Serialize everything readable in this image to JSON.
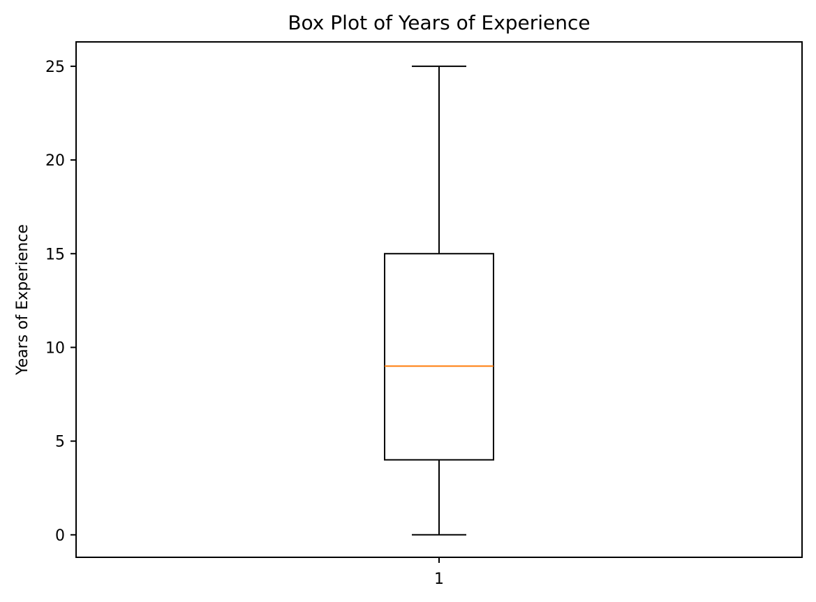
{
  "chart_data": {
    "type": "box",
    "title": "Box Plot of Years of Experience",
    "xlabel": "",
    "ylabel": "Years of Experience",
    "categories": [
      "1"
    ],
    "ylim": [
      -1.2,
      26.3
    ],
    "yticks": [
      0,
      5,
      10,
      15,
      20,
      25
    ],
    "ytick_labels": [
      "0",
      "5",
      "10",
      "15",
      "20",
      "25"
    ],
    "grid": false,
    "boxes": [
      {
        "label": "1",
        "whisker_low": 0,
        "q1": 4,
        "median": 9,
        "q3": 15,
        "whisker_high": 25
      }
    ],
    "colors": {
      "box": "#000000",
      "median": "#ff7f0e",
      "axes": "#000000",
      "background": "#ffffff"
    }
  }
}
